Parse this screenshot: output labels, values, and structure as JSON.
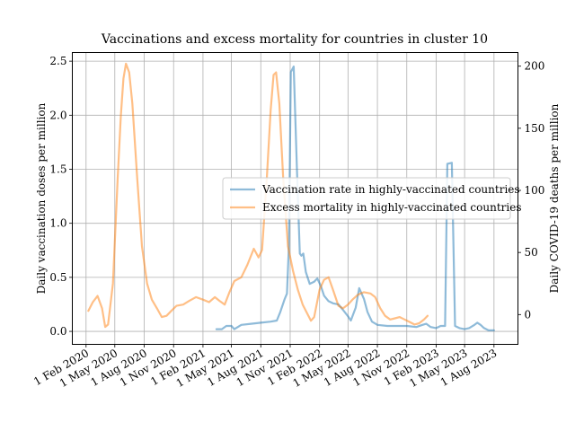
{
  "chart_data": {
    "type": "line",
    "title": "Vaccinations and excess mortality for countries in cluster 10",
    "xlabel": "",
    "ylabel_left": "Daily vaccination doses per million",
    "ylabel_right": "Daily COVID-19 deaths per million",
    "ylim_left": [
      -0.12,
      2.58
    ],
    "ylim_right": [
      -24,
      211
    ],
    "xlim": [
      "2019-12-20",
      "2023-10-15"
    ],
    "grid": true,
    "legend_position": "center-right",
    "yticks_left": [
      0.0,
      0.5,
      1.0,
      1.5,
      2.0,
      2.5
    ],
    "yticks_left_labels": [
      "0.0",
      "0.5",
      "1.0",
      "1.5",
      "2.0",
      "2.5"
    ],
    "yticks_right": [
      0,
      50,
      100,
      150,
      200
    ],
    "yticks_right_labels": [
      "0",
      "50",
      "100",
      "150",
      "200"
    ],
    "xticks": [
      "2020-02-01",
      "2020-05-01",
      "2020-08-01",
      "2020-11-01",
      "2021-02-01",
      "2021-05-01",
      "2021-08-01",
      "2021-11-01",
      "2022-02-01",
      "2022-05-01",
      "2022-08-01",
      "2022-11-01",
      "2023-02-01",
      "2023-05-01",
      "2023-08-01"
    ],
    "xtick_labels": [
      "1 Feb 2020",
      "1 May 2020",
      "1 Aug 2020",
      "1 Nov 2020",
      "1 Feb 2021",
      "1 May 2021",
      "1 Aug 2021",
      "1 Nov 2021",
      "1 Feb 2022",
      "1 May 2022",
      "1 Aug 2022",
      "1 Nov 2022",
      "1 Feb 2023",
      "1 May 2023",
      "1 Aug 2023"
    ],
    "series": [
      {
        "name": "Vaccination rate in highly-vaccinated countries",
        "axis": "left",
        "color": "#1f77b4",
        "points": [
          [
            "2021-03-15",
            0.02
          ],
          [
            "2021-04-01",
            0.02
          ],
          [
            "2021-04-15",
            0.05
          ],
          [
            "2021-05-01",
            0.05
          ],
          [
            "2021-05-10",
            0.02
          ],
          [
            "2021-06-01",
            0.06
          ],
          [
            "2021-07-01",
            0.07
          ],
          [
            "2021-08-01",
            0.08
          ],
          [
            "2021-09-01",
            0.09
          ],
          [
            "2021-09-20",
            0.1
          ],
          [
            "2021-10-01",
            0.18
          ],
          [
            "2021-10-15",
            0.3
          ],
          [
            "2021-10-22",
            0.35
          ],
          [
            "2021-10-28",
            0.8
          ],
          [
            "2021-11-03",
            2.4
          ],
          [
            "2021-11-12",
            2.45
          ],
          [
            "2021-11-22",
            1.5
          ],
          [
            "2021-12-01",
            0.72
          ],
          [
            "2021-12-06",
            0.7
          ],
          [
            "2021-12-12",
            0.72
          ],
          [
            "2021-12-20",
            0.55
          ],
          [
            "2022-01-01",
            0.44
          ],
          [
            "2022-01-15",
            0.46
          ],
          [
            "2022-01-25",
            0.49
          ],
          [
            "2022-02-05",
            0.42
          ],
          [
            "2022-02-15",
            0.33
          ],
          [
            "2022-03-01",
            0.28
          ],
          [
            "2022-03-15",
            0.26
          ],
          [
            "2022-04-01",
            0.25
          ],
          [
            "2022-04-15",
            0.2
          ],
          [
            "2022-05-01",
            0.14
          ],
          [
            "2022-05-10",
            0.1
          ],
          [
            "2022-05-25",
            0.22
          ],
          [
            "2022-06-05",
            0.4
          ],
          [
            "2022-06-20",
            0.3
          ],
          [
            "2022-07-01",
            0.18
          ],
          [
            "2022-07-15",
            0.09
          ],
          [
            "2022-08-01",
            0.06
          ],
          [
            "2022-09-01",
            0.05
          ],
          [
            "2022-10-01",
            0.05
          ],
          [
            "2022-11-01",
            0.05
          ],
          [
            "2022-12-01",
            0.04
          ],
          [
            "2022-12-20",
            0.06
          ],
          [
            "2023-01-01",
            0.07
          ],
          [
            "2023-01-15",
            0.04
          ],
          [
            "2023-02-01",
            0.03
          ],
          [
            "2023-02-15",
            0.05
          ],
          [
            "2023-03-01",
            0.05
          ],
          [
            "2023-03-08",
            1.55
          ],
          [
            "2023-03-22",
            1.56
          ],
          [
            "2023-04-01",
            0.05
          ],
          [
            "2023-04-15",
            0.03
          ],
          [
            "2023-05-01",
            0.02
          ],
          [
            "2023-05-15",
            0.03
          ],
          [
            "2023-06-01",
            0.06
          ],
          [
            "2023-06-10",
            0.08
          ],
          [
            "2023-06-20",
            0.06
          ],
          [
            "2023-07-01",
            0.03
          ],
          [
            "2023-07-15",
            0.01
          ],
          [
            "2023-08-01",
            0.01
          ]
        ]
      },
      {
        "name": "Excess mortality in highly-vaccinated countries",
        "axis": "right",
        "color": "#ff7f0e",
        "points": [
          [
            "2020-02-08",
            3
          ],
          [
            "2020-02-22",
            10
          ],
          [
            "2020-03-08",
            15
          ],
          [
            "2020-03-22",
            5
          ],
          [
            "2020-04-01",
            -10
          ],
          [
            "2020-04-10",
            -8
          ],
          [
            "2020-04-25",
            25
          ],
          [
            "2020-05-10",
            110
          ],
          [
            "2020-05-20",
            160
          ],
          [
            "2020-05-28",
            190
          ],
          [
            "2020-06-05",
            202
          ],
          [
            "2020-06-15",
            195
          ],
          [
            "2020-06-25",
            170
          ],
          [
            "2020-07-10",
            110
          ],
          [
            "2020-07-25",
            55
          ],
          [
            "2020-08-10",
            25
          ],
          [
            "2020-08-25",
            12
          ],
          [
            "2020-09-10",
            5
          ],
          [
            "2020-09-25",
            -2
          ],
          [
            "2020-10-10",
            -1
          ],
          [
            "2020-10-25",
            3
          ],
          [
            "2020-11-10",
            7
          ],
          [
            "2020-12-01",
            8
          ],
          [
            "2020-12-20",
            11
          ],
          [
            "2021-01-10",
            14
          ],
          [
            "2021-02-01",
            12
          ],
          [
            "2021-02-20",
            10
          ],
          [
            "2021-03-10",
            14
          ],
          [
            "2021-03-25",
            11
          ],
          [
            "2021-04-10",
            8
          ],
          [
            "2021-04-25",
            18
          ],
          [
            "2021-05-10",
            27
          ],
          [
            "2021-06-01",
            30
          ],
          [
            "2021-06-20",
            40
          ],
          [
            "2021-07-10",
            53
          ],
          [
            "2021-07-25",
            46
          ],
          [
            "2021-08-05",
            52
          ],
          [
            "2021-08-20",
            110
          ],
          [
            "2021-09-01",
            165
          ],
          [
            "2021-09-10",
            193
          ],
          [
            "2021-09-18",
            195
          ],
          [
            "2021-09-28",
            170
          ],
          [
            "2021-10-10",
            110
          ],
          [
            "2021-10-25",
            55
          ],
          [
            "2021-11-10",
            35
          ],
          [
            "2021-11-25",
            20
          ],
          [
            "2021-12-10",
            8
          ],
          [
            "2021-12-22",
            2
          ],
          [
            "2022-01-05",
            -5
          ],
          [
            "2022-01-15",
            -2
          ],
          [
            "2022-02-01",
            20
          ],
          [
            "2022-02-15",
            28
          ],
          [
            "2022-03-01",
            30
          ],
          [
            "2022-03-15",
            20
          ],
          [
            "2022-04-01",
            7
          ],
          [
            "2022-04-15",
            5
          ],
          [
            "2022-05-01",
            8
          ],
          [
            "2022-05-15",
            12
          ],
          [
            "2022-06-01",
            16
          ],
          [
            "2022-06-20",
            18
          ],
          [
            "2022-07-10",
            17
          ],
          [
            "2022-07-25",
            14
          ],
          [
            "2022-08-10",
            5
          ],
          [
            "2022-08-25",
            -1
          ],
          [
            "2022-09-10",
            -4
          ],
          [
            "2022-09-25",
            -3
          ],
          [
            "2022-10-10",
            -2
          ],
          [
            "2022-10-25",
            -4
          ],
          [
            "2022-11-10",
            -6
          ],
          [
            "2022-11-25",
            -8
          ],
          [
            "2022-12-10",
            -7
          ],
          [
            "2022-12-25",
            -4
          ],
          [
            "2023-01-05",
            -1
          ]
        ]
      }
    ]
  }
}
